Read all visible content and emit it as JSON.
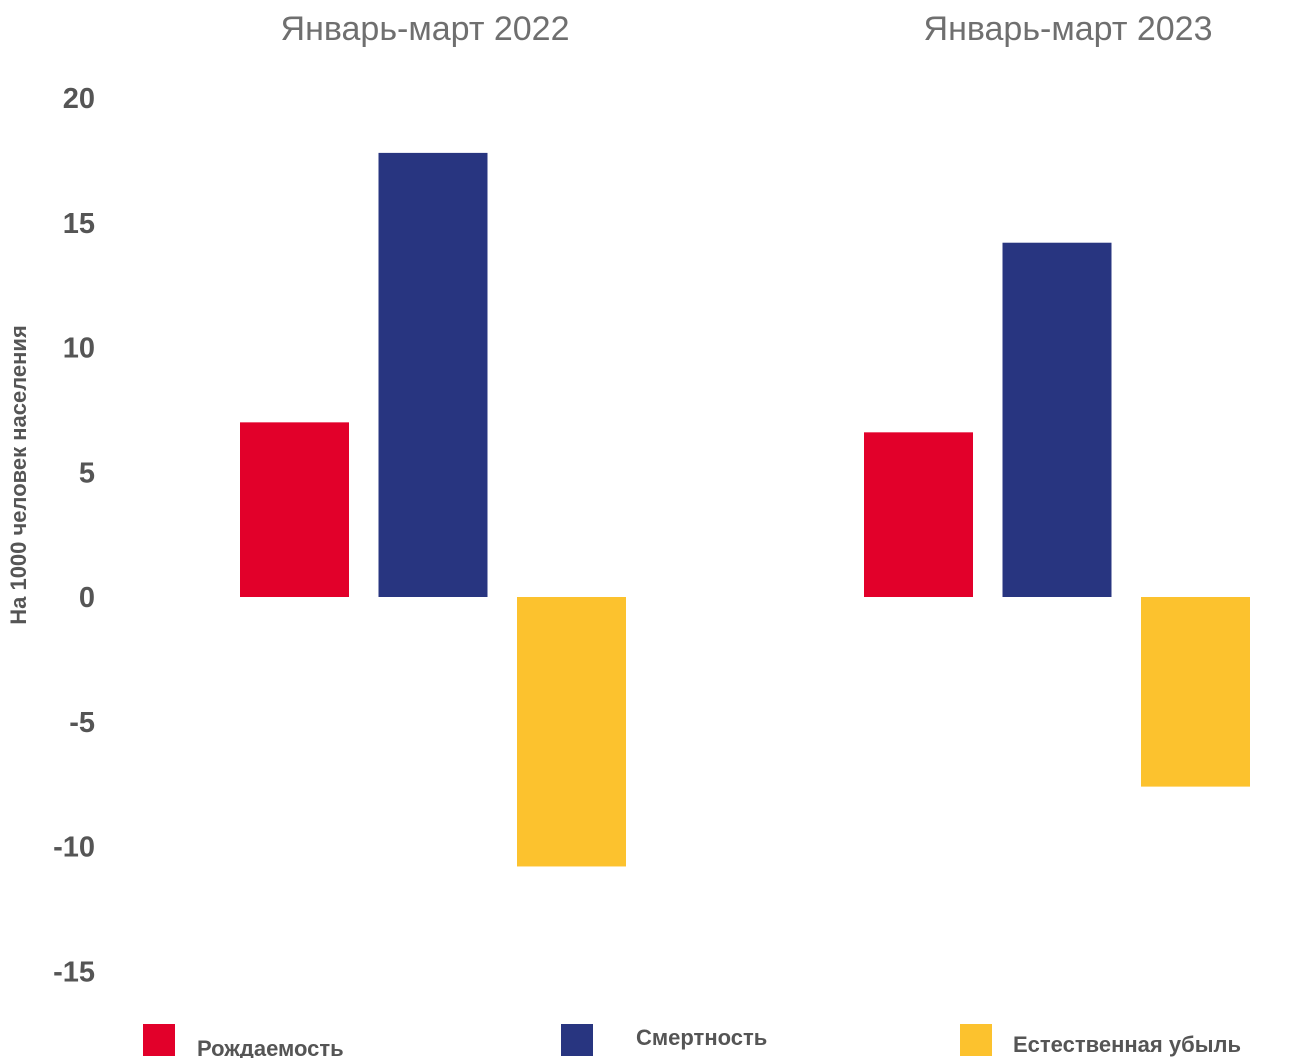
{
  "chart_data": {
    "type": "bar",
    "title": "",
    "ylabel": "На 1000 человек населения",
    "ylim": [
      -15,
      20
    ],
    "yticks": [
      "20",
      "15",
      "10",
      "5",
      "0",
      "-5",
      "-10",
      "-15"
    ],
    "categories": [
      "Январь-март 2022",
      "Январь-март 2023"
    ],
    "series": [
      {
        "name": "Рождаемость",
        "color": "#e2002a",
        "values": [
          7.0,
          6.6
        ]
      },
      {
        "name": "Смертность",
        "color": "#283580",
        "values": [
          17.8,
          14.2
        ]
      },
      {
        "name": "Естественная убыль",
        "color": "#fcc22e",
        "values": [
          -10.8,
          -7.6
        ]
      }
    ],
    "grid": false,
    "legend": "bottom"
  }
}
